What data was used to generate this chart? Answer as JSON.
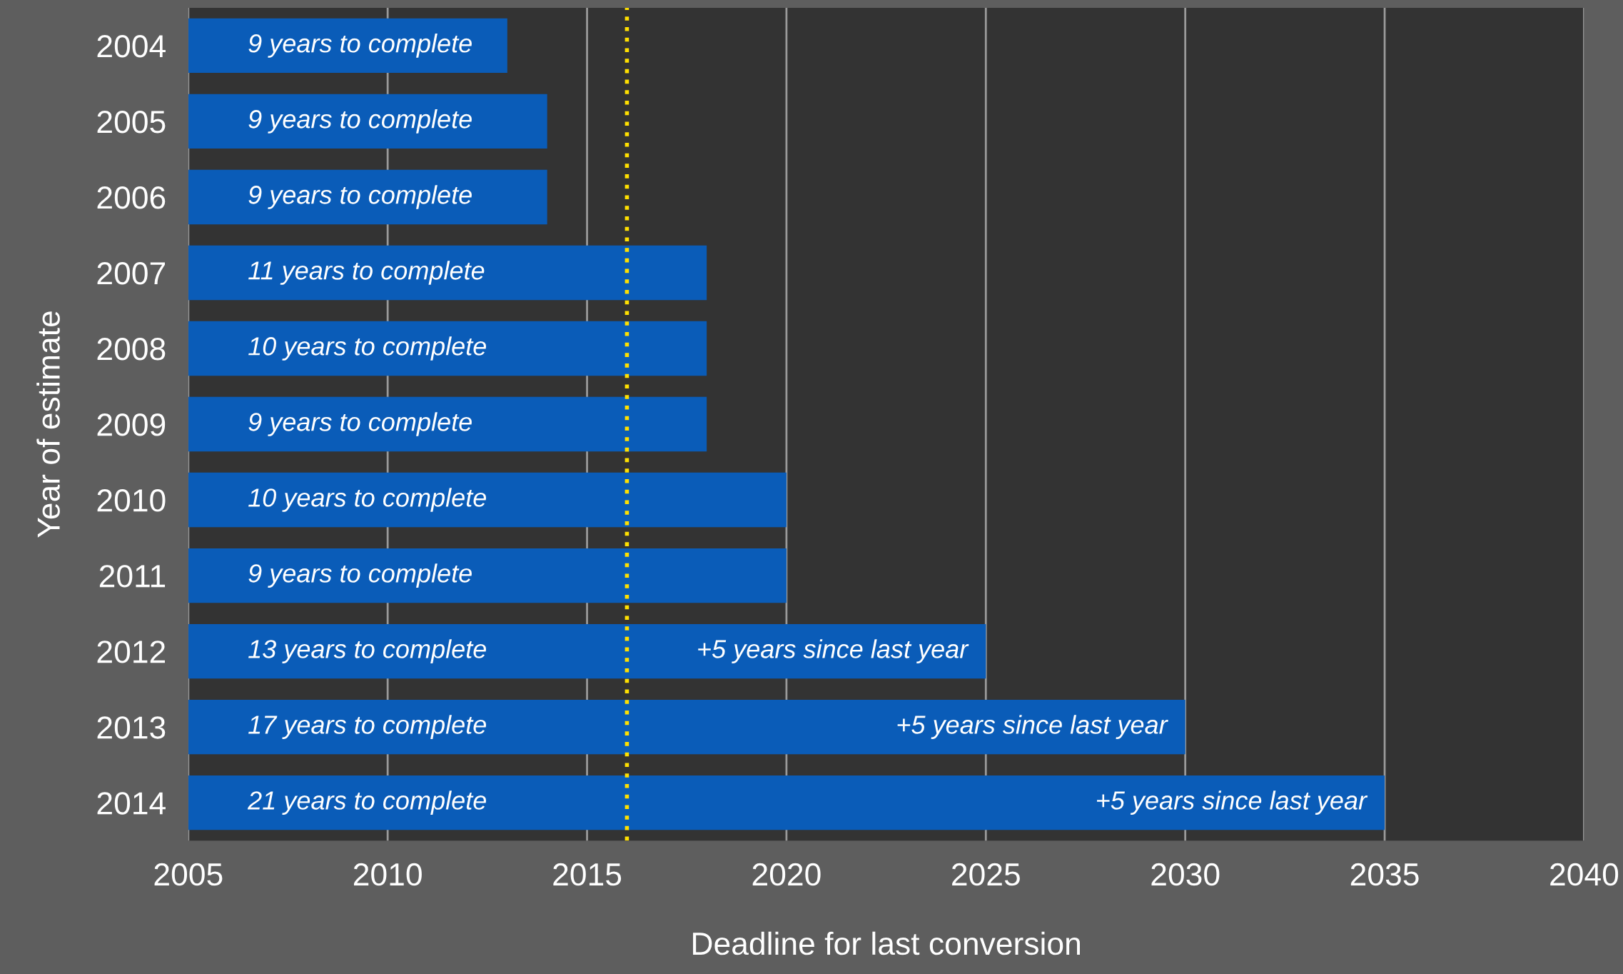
{
  "chart_data": {
    "type": "bar",
    "orientation": "horizontal",
    "xlabel": "Deadline for last conversion",
    "ylabel": "Year of estimate",
    "categories": [
      "2004",
      "2005",
      "2006",
      "2007",
      "2008",
      "2009",
      "2010",
      "2011",
      "2012",
      "2013",
      "2014"
    ],
    "base": [
      2005,
      2005,
      2005,
      2005,
      2005,
      2005,
      2005,
      2005,
      2005,
      2005,
      2005
    ],
    "values": [
      8,
      9,
      9,
      13,
      13,
      13,
      15,
      15,
      20,
      25,
      30
    ],
    "color": "#0a5cb8",
    "xlim": [
      2005,
      2040
    ],
    "xticks": [
      2005,
      2010,
      2015,
      2020,
      2025,
      2030,
      2035,
      2040
    ],
    "grid": "x",
    "ref_lines": [
      {
        "axis": "x",
        "value": 2016,
        "color": "#ffe000",
        "line_style": "dotted"
      }
    ],
    "annotations": [
      {
        "text": "9 years to complete",
        "x": 2005,
        "y": "2004"
      },
      {
        "text": "9 years to complete",
        "x": 2005,
        "y": "2005"
      },
      {
        "text": "9 years to complete",
        "x": 2005,
        "y": "2006"
      },
      {
        "text": "11 years to complete",
        "x": 2005,
        "y": "2007"
      },
      {
        "text": "10 years to complete",
        "x": 2005,
        "y": "2008"
      },
      {
        "text": "9 years to complete",
        "x": 2005,
        "y": "2009"
      },
      {
        "text": "10 years to complete",
        "x": 2005,
        "y": "2010"
      },
      {
        "text": "9 years to complete",
        "x": 2005,
        "y": "2011"
      },
      {
        "text": "13 years to complete",
        "x": 2005,
        "y": "2012"
      },
      {
        "text": "+5 years since last year",
        "x": 2025,
        "y": "2012"
      },
      {
        "text": "17 years to complete",
        "x": 2005,
        "y": "2013"
      },
      {
        "text": "+5 years since last year",
        "x": 2030,
        "y": "2013"
      },
      {
        "text": "21 years to complete",
        "x": 2005,
        "y": "2014"
      },
      {
        "text": "+5 years since last year",
        "x": 2035,
        "y": "2014"
      }
    ]
  }
}
